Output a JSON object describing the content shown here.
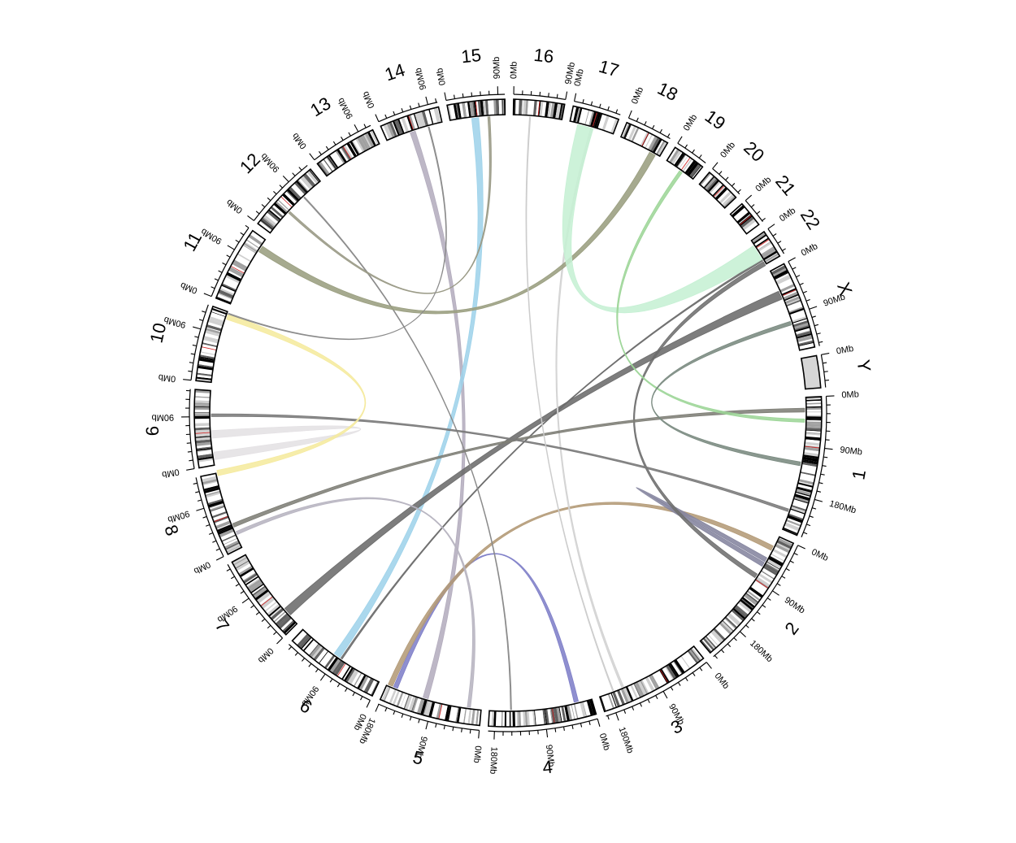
{
  "diagram": {
    "type": "circos",
    "chromosomes": [
      {
        "id": "chr1",
        "label": "1",
        "size_mb": 249,
        "ticks": [
          "0Mb",
          "90Mb",
          "180Mb"
        ]
      },
      {
        "id": "chr2",
        "label": "2",
        "size_mb": 243,
        "ticks": [
          "0Mb",
          "90Mb",
          "180Mb"
        ]
      },
      {
        "id": "chr3",
        "label": "3",
        "size_mb": 198,
        "ticks": [
          "0Mb",
          "90Mb",
          "180Mb"
        ]
      },
      {
        "id": "chr4",
        "label": "4",
        "size_mb": 191,
        "ticks": [
          "0Mb",
          "90Mb",
          "180Mb"
        ]
      },
      {
        "id": "chr5",
        "label": "5",
        "size_mb": 181,
        "ticks": [
          "0Mb",
          "90Mb",
          "180Mb"
        ]
      },
      {
        "id": "chr6",
        "label": "6",
        "size_mb": 171,
        "ticks": [
          "0Mb",
          "90Mb"
        ]
      },
      {
        "id": "chr7",
        "label": "7",
        "size_mb": 159,
        "ticks": [
          "0Mb",
          "90Mb"
        ]
      },
      {
        "id": "chr8",
        "label": "8",
        "size_mb": 145,
        "ticks": [
          "0Mb",
          "90Mb"
        ]
      },
      {
        "id": "chr9",
        "label": "9",
        "size_mb": 138,
        "ticks": [
          "0Mb",
          "90Mb"
        ]
      },
      {
        "id": "chr10",
        "label": "10",
        "size_mb": 134,
        "ticks": [
          "0Mb",
          "90Mb"
        ]
      },
      {
        "id": "chr11",
        "label": "11",
        "size_mb": 135,
        "ticks": [
          "0Mb",
          "90Mb"
        ]
      },
      {
        "id": "chr12",
        "label": "12",
        "size_mb": 133,
        "ticks": [
          "0Mb",
          "90Mb"
        ]
      },
      {
        "id": "chr13",
        "label": "13",
        "size_mb": 114,
        "ticks": [
          "0Mb",
          "90Mb"
        ]
      },
      {
        "id": "chr14",
        "label": "14",
        "size_mb": 107,
        "ticks": [
          "0Mb",
          "90Mb"
        ]
      },
      {
        "id": "chr15",
        "label": "15",
        "size_mb": 102,
        "ticks": [
          "0Mb",
          "90Mb"
        ]
      },
      {
        "id": "chr16",
        "label": "16",
        "size_mb": 90,
        "ticks": [
          "0Mb",
          "90Mb"
        ]
      },
      {
        "id": "chr17",
        "label": "17",
        "size_mb": 83,
        "ticks": [
          "0Mb"
        ]
      },
      {
        "id": "chr18",
        "label": "18",
        "size_mb": 80,
        "ticks": [
          "0Mb"
        ]
      },
      {
        "id": "chr19",
        "label": "19",
        "size_mb": 59,
        "ticks": [
          "0Mb"
        ]
      },
      {
        "id": "chr20",
        "label": "20",
        "size_mb": 64,
        "ticks": [
          "0Mb"
        ]
      },
      {
        "id": "chr21",
        "label": "21",
        "size_mb": 47,
        "ticks": [
          "0Mb"
        ]
      },
      {
        "id": "chr22",
        "label": "22",
        "size_mb": 51,
        "ticks": [
          "0Mb"
        ]
      },
      {
        "id": "chrX",
        "label": "X",
        "size_mb": 156,
        "ticks": [
          "0Mb",
          "90Mb"
        ]
      },
      {
        "id": "chrY",
        "label": "Y",
        "size_mb": 57,
        "ticks": [
          "0Mb"
        ]
      }
    ],
    "links": [
      {
        "from": "chr5",
        "from_mb": 100,
        "to": "chr14",
        "to_mb": 45,
        "color": "#b4adbe",
        "width_mb": 10
      },
      {
        "from": "chr5",
        "from_mb": 160,
        "to": "chr4",
        "to_mb": 25,
        "color": "#7f7fc8",
        "width_mb": 8
      },
      {
        "from": "chr6",
        "from_mb": 85,
        "to": "chr15",
        "to_mb": 40,
        "color": "#9fd3ea",
        "width_mb": 13
      },
      {
        "from": "chr6",
        "from_mb": 80,
        "to": "chr22",
        "to_mb": 40,
        "color": "#6b6b6b",
        "width_mb": 3
      },
      {
        "from": "chr5",
        "from_mb": 170,
        "to": "chr2",
        "to_mb": 20,
        "color": "#b49b78",
        "width_mb": 9
      },
      {
        "from": "chr2",
        "from_mb": 45,
        "to": "chr2",
        "to_mb": 55,
        "color": "#85859f",
        "width_mb": 8
      },
      {
        "from": "chr2",
        "from_mb": 80,
        "to": "chr22",
        "to_mb": 45,
        "color": "#707070",
        "width_mb": 8
      },
      {
        "from": "chr7",
        "from_mb": 20,
        "to": "chrX",
        "to_mb": 40,
        "color": "#6b6b6b",
        "width_mb": 16
      },
      {
        "from": "chr3",
        "from_mb": 150,
        "to": "chr17",
        "to_mb": 40,
        "color": "#d3d3d3",
        "width_mb": 4
      },
      {
        "from": "chr4",
        "from_mb": 150,
        "to": "chr12",
        "to_mb": 90,
        "color": "#8a8a8a",
        "width_mb": 2
      },
      {
        "from": "chr8",
        "from_mb": 40,
        "to": "chr1",
        "to_mb": 20,
        "color": "#7e7e76",
        "width_mb": 7
      },
      {
        "from": "chr8",
        "from_mb": 25,
        "to": "chr5",
        "to_mb": 20,
        "color": "#b7b4c0",
        "width_mb": 6
      },
      {
        "from": "chr9",
        "from_mb": 90,
        "to": "chr1",
        "to_mb": 210,
        "color": "#7a7a7a",
        "width_mb": 5
      },
      {
        "from": "chr9",
        "from_mb": 10,
        "to": "chr9",
        "to_mb": 50,
        "color": "#e4e1e4",
        "width_mb": 14
      },
      {
        "from": "chr8",
        "from_mb": 140,
        "to": "chr10",
        "to_mb": 120,
        "color": "#f5ea9e",
        "width_mb": 10
      },
      {
        "from": "chr11",
        "from_mb": 110,
        "to": "chr18",
        "to_mb": 60,
        "color": "#9a9e80",
        "width_mb": 12
      },
      {
        "from": "chr12",
        "from_mb": 50,
        "to": "chr15",
        "to_mb": 70,
        "color": "#9a9a86",
        "width_mb": 4
      },
      {
        "from": "chr10",
        "from_mb": 130,
        "to": "chr14",
        "to_mb": 80,
        "color": "#8a8a8a",
        "width_mb": 2
      },
      {
        "from": "chr17",
        "from_mb": 15,
        "to": "chr22",
        "to_mb": 10,
        "color": "#c6f0d4",
        "width_mb": 30
      },
      {
        "from": "chr19",
        "from_mb": 30,
        "to": "chr1",
        "to_mb": 40,
        "color": "#9ed699",
        "width_mb": 6
      },
      {
        "from": "chrX",
        "from_mb": 100,
        "to": "chr1",
        "to_mb": 120,
        "color": "#7a8a80",
        "width_mb": 7
      },
      {
        "from": "chr16",
        "from_mb": 30,
        "to": "chr3",
        "to_mb": 170,
        "color": "#cccccc",
        "width_mb": 2
      }
    ]
  }
}
